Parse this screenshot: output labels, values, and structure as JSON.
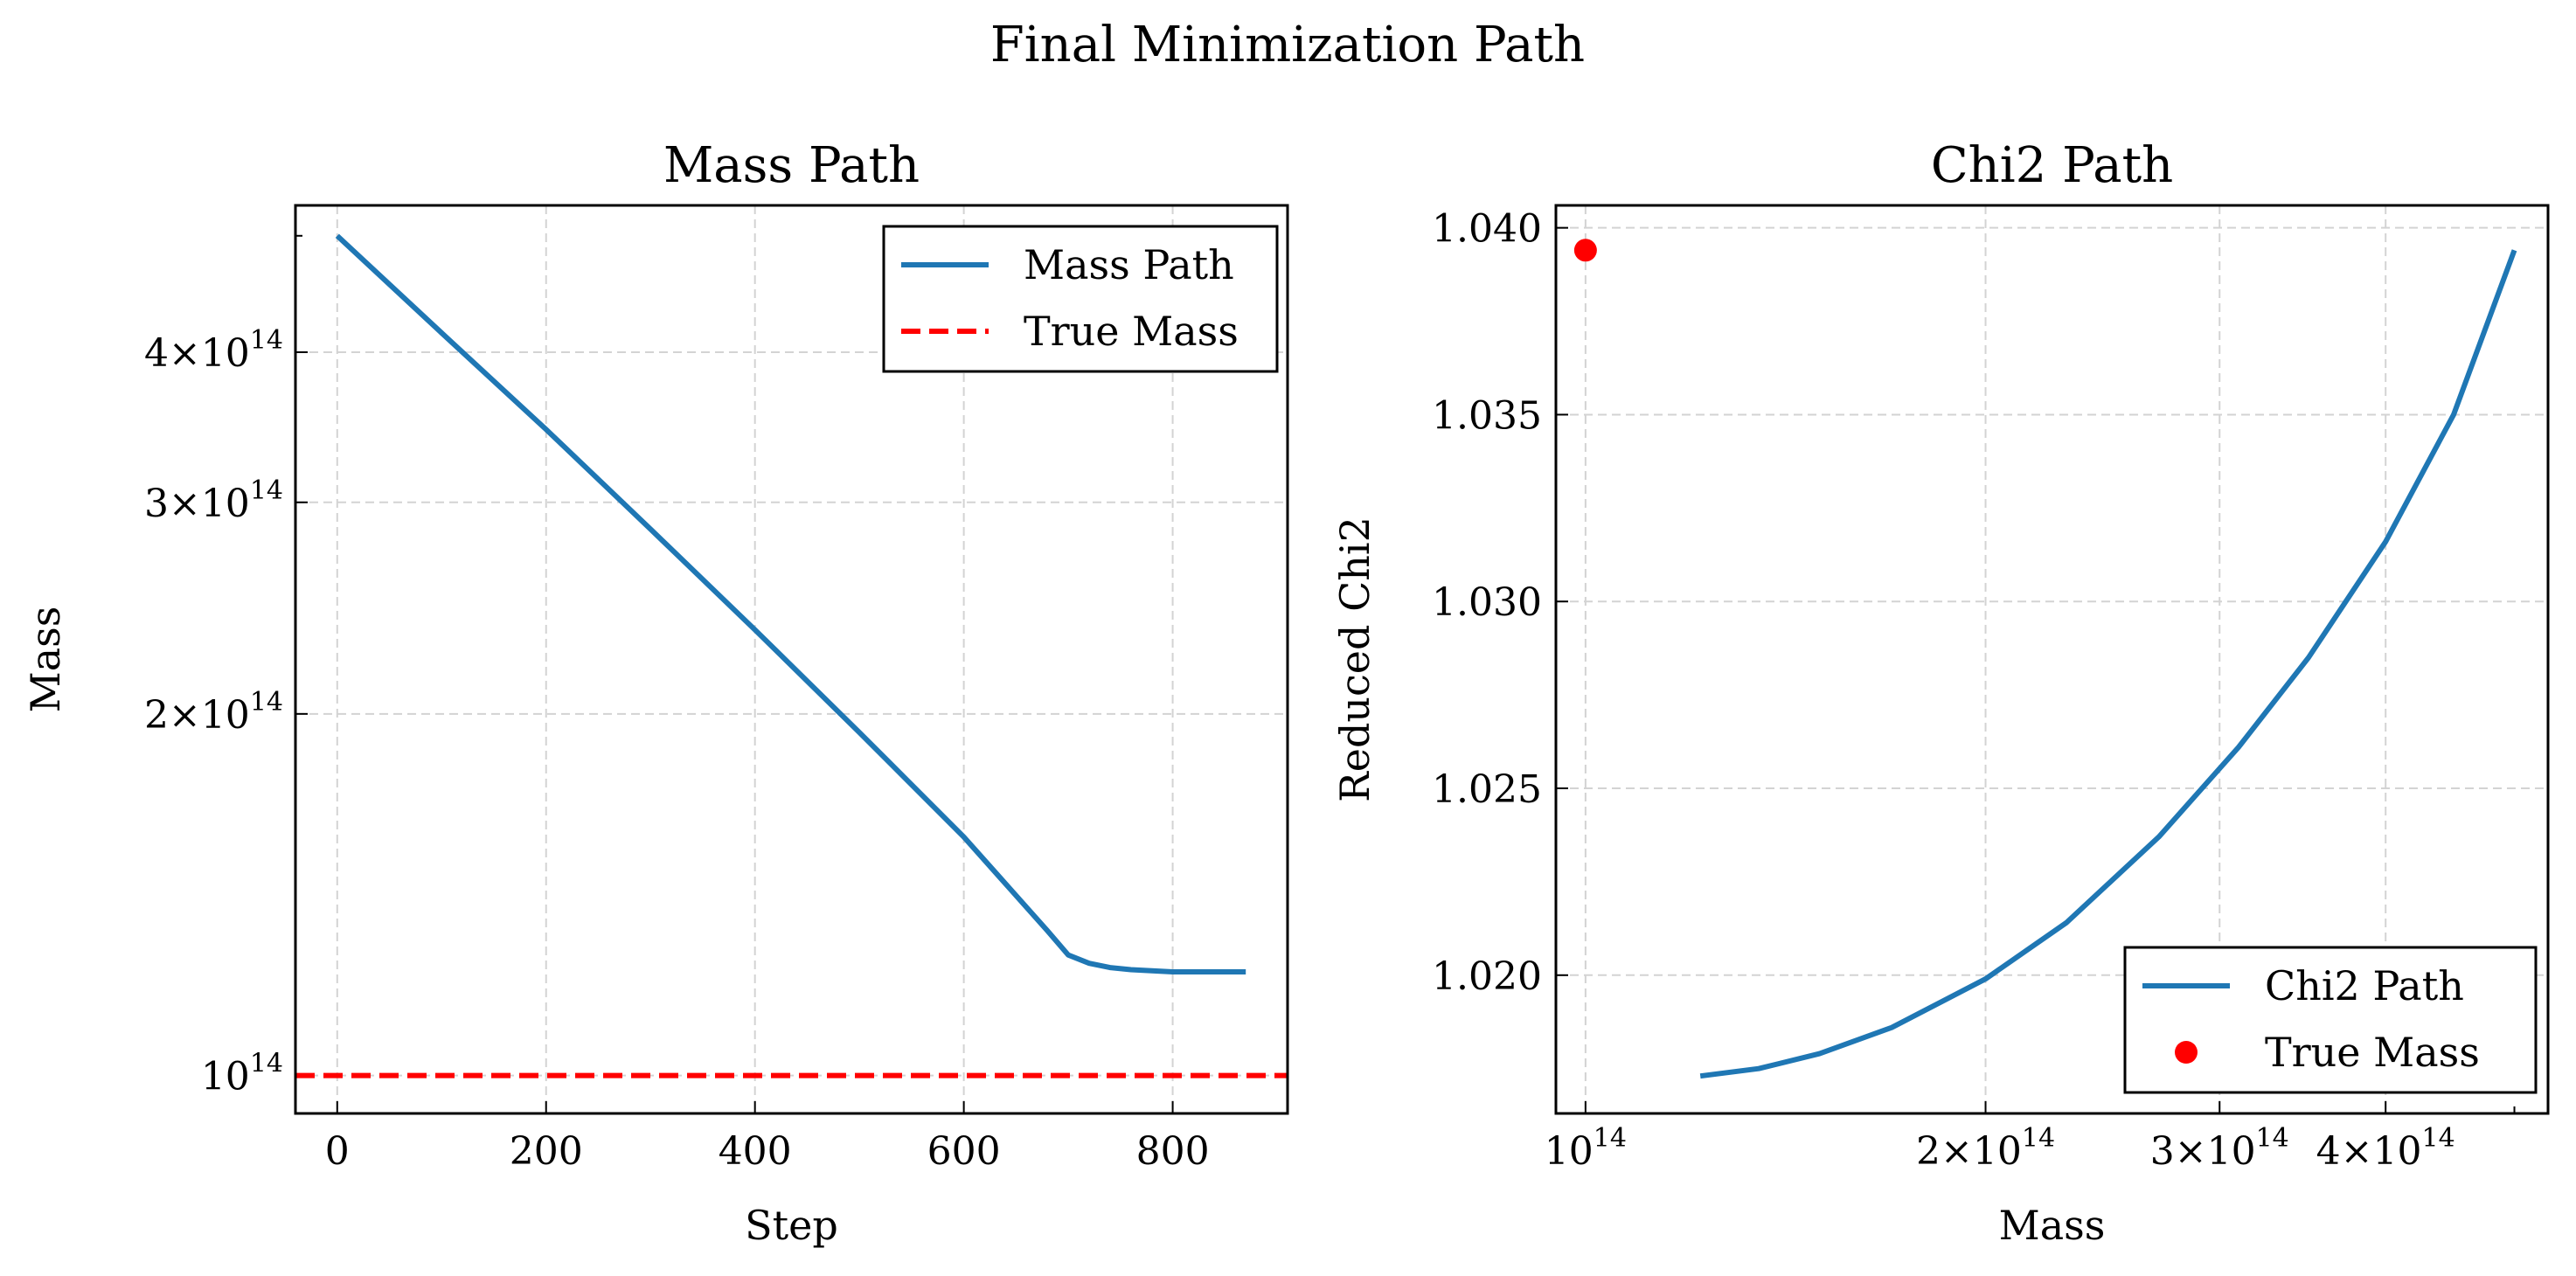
{
  "figure": {
    "title": "Final Minimization Path"
  },
  "colors": {
    "series": "#1f77b4",
    "reference": "#ff0000",
    "grid": "#d3d3d3",
    "axes": "#000000"
  },
  "chart_data": [
    {
      "type": "line",
      "title": "Mass Path",
      "xlabel": "Step",
      "ylabel": "Mass",
      "xlim": [
        -40,
        910
      ],
      "ylim": [
        93000000000000.0,
        530000000000000.0
      ],
      "yscale": "log",
      "grid": true,
      "legend_position": "upper right",
      "xticks": [
        0,
        200,
        400,
        600,
        800
      ],
      "xtick_labels": [
        "0",
        "200",
        "400",
        "600",
        "800"
      ],
      "yticks": [
        {
          "value": 100000000000000.0,
          "mantissa": "",
          "exp": "14"
        },
        {
          "value": 200000000000000.0,
          "mantissa": "2",
          "exp": "14"
        },
        {
          "value": 300000000000000.0,
          "mantissa": "3",
          "exp": "14"
        },
        {
          "value": 400000000000000.0,
          "mantissa": "4",
          "exp": "14"
        }
      ],
      "legend": [
        {
          "label": "Mass Path",
          "style": "solid"
        },
        {
          "label": "True Mass",
          "style": "dashed"
        }
      ],
      "series": [
        {
          "name": "Mass Path",
          "x": [
            0,
            100,
            200,
            300,
            400,
            500,
            600,
            680,
            700,
            720,
            740,
            760,
            800,
            850,
            870
          ],
          "y": [
            500000000000000.0,
            415000000000000.0,
            345000000000000.0,
            285000000000000.0,
            235000000000000.0,
            193000000000000.0,
            158000000000000.0,
            132000000000000.0,
            126000000000000.0,
            124000000000000.0,
            123000000000000.0,
            122500000000000.0,
            122000000000000.0,
            122000000000000.0,
            122000000000000.0
          ]
        }
      ],
      "reference_line": {
        "name": "True Mass",
        "y": 100000000000000.0
      }
    },
    {
      "type": "line",
      "title": "Chi2 Path",
      "xlabel": "Mass",
      "ylabel": "Reduced Chi2",
      "xlim": [
        95000000000000.0,
        530000000000000.0
      ],
      "ylim": [
        1.0163,
        1.0406
      ],
      "xscale": "log",
      "grid": true,
      "legend_position": "lower right",
      "xticks": [
        {
          "value": 100000000000000.0,
          "mantissa": "",
          "exp": "14"
        },
        {
          "value": 200000000000000.0,
          "mantissa": "2",
          "exp": "14"
        },
        {
          "value": 300000000000000.0,
          "mantissa": "3",
          "exp": "14"
        },
        {
          "value": 400000000000000.0,
          "mantissa": "4",
          "exp": "14"
        }
      ],
      "yticks": [
        1.02,
        1.025,
        1.03,
        1.035,
        1.04
      ],
      "ytick_labels": [
        "1.020",
        "1.025",
        "1.030",
        "1.035",
        "1.040"
      ],
      "legend": [
        {
          "label": "Chi2 Path",
          "style": "solid"
        },
        {
          "label": "True Mass",
          "style": "marker"
        }
      ],
      "series": [
        {
          "name": "Chi2 Path",
          "x": [
            122000000000000.0,
            135000000000000.0,
            150000000000000.0,
            170000000000000.0,
            200000000000000.0,
            230000000000000.0,
            270000000000000.0,
            310000000000000.0,
            350000000000000.0,
            400000000000000.0,
            450000000000000.0,
            500000000000000.0
          ],
          "y": [
            1.0173,
            1.0175,
            1.0179,
            1.0186,
            1.0199,
            1.0214,
            1.0237,
            1.0261,
            1.0285,
            1.0316,
            1.035,
            1.0394
          ]
        }
      ],
      "marker_point": {
        "name": "True Mass",
        "x": 100000000000000.0,
        "y": 1.0394
      }
    }
  ]
}
